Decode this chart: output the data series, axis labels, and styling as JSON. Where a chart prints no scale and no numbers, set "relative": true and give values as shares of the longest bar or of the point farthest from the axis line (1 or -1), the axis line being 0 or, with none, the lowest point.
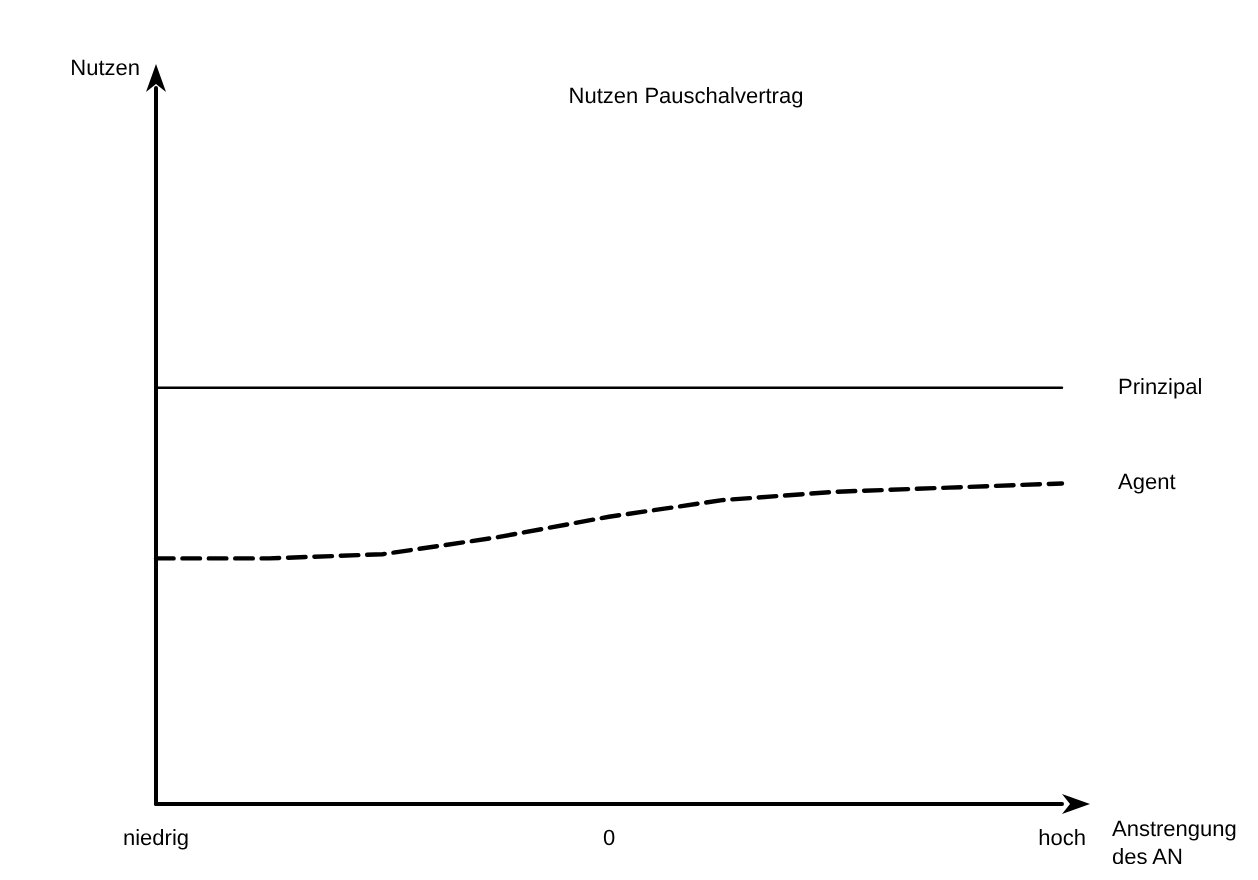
{
  "chart_data": {
    "type": "line",
    "title": "Nutzen Pauschalvertrag",
    "xlabel": "Anstrengung\ndes AN",
    "annotations": [
      "Nutzen"
    ],
    "relative": true,
    "categories": [
      "niedrig",
      null,
      null,
      null,
      "0",
      null,
      null,
      null,
      "hoch"
    ],
    "series": [
      {
        "name": "Prinzipal",
        "color": "#000000",
        "line_style": "solid",
        "values": [
          1,
          1,
          1,
          1,
          1,
          1,
          1,
          1,
          1
        ]
      },
      {
        "name": "Agent",
        "color": "#000000",
        "line_style": "dashed",
        "values": [
          0.59,
          0.59,
          0.6,
          0.64,
          0.69,
          0.73,
          0.75,
          0.76,
          0.77
        ]
      }
    ],
    "marker": "none",
    "grid": false,
    "legend": false
  }
}
